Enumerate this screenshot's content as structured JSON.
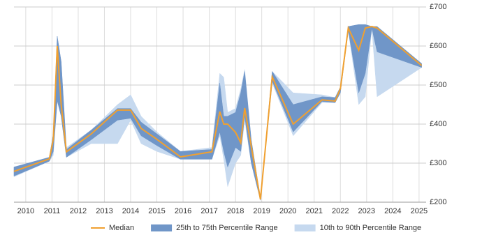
{
  "chart_data": {
    "type": "band-line",
    "x": [
      2009.55,
      2010.9,
      2011.05,
      2011.2,
      2011.35,
      2011.55,
      2012.5,
      2013.5,
      2014.0,
      2014.4,
      2015.0,
      2015.9,
      2017.1,
      2017.4,
      2017.55,
      2017.7,
      2018.0,
      2018.2,
      2018.35,
      2018.6,
      2018.95,
      2019.4,
      2020.2,
      2021.3,
      2021.8,
      2022.0,
      2022.3,
      2022.7,
      2022.95,
      2023.2,
      2023.4,
      2025.1
    ],
    "series": [
      {
        "name": "10th to 90th Percentile Range",
        "color": "#c6d9ef",
        "low": [
          265,
          305,
          320,
          460,
          420,
          315,
          350,
          350,
          410,
          350,
          330,
          310,
          310,
          370,
          310,
          240,
          300,
          320,
          410,
          300,
          205,
          505,
          370,
          455,
          455,
          480,
          640,
          450,
          470,
          645,
          470,
          545
        ],
        "high": [
          290,
          315,
          375,
          625,
          560,
          340,
          385,
          450,
          475,
          420,
          380,
          330,
          340,
          530,
          520,
          430,
          440,
          490,
          540,
          360,
          210,
          535,
          480,
          475,
          468,
          495,
          650,
          655,
          655,
          650,
          650,
          555
        ]
      },
      {
        "name": "25th to 75th Percentile Range",
        "color": "#7096c8",
        "low": [
          267,
          305,
          330,
          460,
          420,
          315,
          360,
          410,
          415,
          370,
          345,
          310,
          310,
          380,
          330,
          290,
          340,
          330,
          420,
          300,
          205,
          510,
          380,
          458,
          455,
          480,
          640,
          480,
          530,
          645,
          585,
          545
        ],
        "high": [
          290,
          315,
          375,
          625,
          560,
          335,
          385,
          440,
          440,
          405,
          375,
          330,
          335,
          505,
          420,
          420,
          430,
          480,
          535,
          360,
          210,
          535,
          450,
          470,
          468,
          495,
          650,
          655,
          655,
          650,
          650,
          555
        ]
      },
      {
        "name": "Median",
        "color": "#f0a030",
        "values": [
          279,
          311,
          361,
          600,
          450,
          329,
          375,
          436,
          436,
          389,
          361,
          316,
          329,
          432,
          400,
          400,
          379,
          352,
          441,
          343,
          207,
          521,
          400,
          462,
          459,
          491,
          646,
          589,
          646,
          650,
          646,
          550
        ]
      }
    ],
    "xlim": [
      2009.55,
      2025.27
    ],
    "xticks": [
      2010,
      2011,
      2012,
      2013,
      2014,
      2015,
      2016,
      2017,
      2018,
      2019,
      2020,
      2021,
      2022,
      2023,
      2024,
      2025
    ],
    "ylim": [
      200,
      700
    ],
    "yticks": [
      {
        "value": 200,
        "label": "£200"
      },
      {
        "value": 300,
        "label": "£300"
      },
      {
        "value": 400,
        "label": "£400"
      },
      {
        "value": 500,
        "label": "£500"
      },
      {
        "value": 600,
        "label": "£600"
      },
      {
        "value": 700,
        "label": "£700"
      }
    ],
    "grid": true,
    "legend": "bottom"
  }
}
